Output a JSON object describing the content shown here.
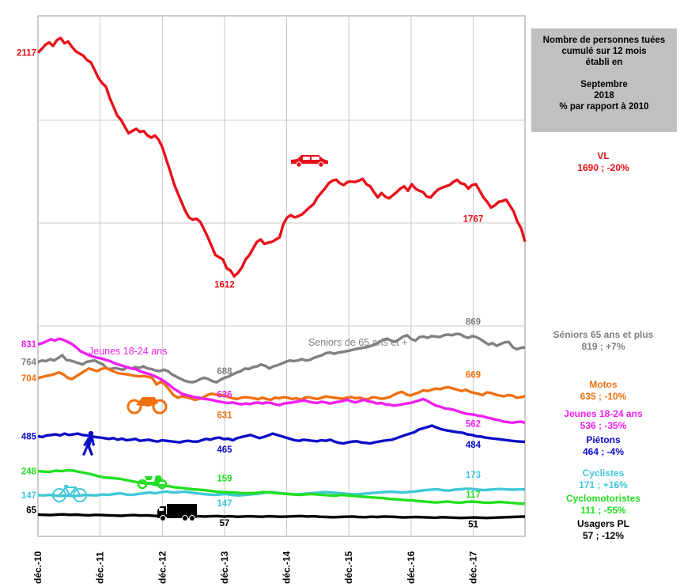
{
  "info_box": {
    "line1": "Nombre de personnes tuées",
    "line2": "cumulé sur 12 mois",
    "line3": "établi en",
    "line4": "Septembre",
    "line5": "2018",
    "line6": "% par rapport à 2010"
  },
  "colors": {
    "vl": "#e8101a",
    "seniors": "#808080",
    "motos": "#f07010",
    "jeunes": "#f020f0",
    "pietons": "#0c0cc8",
    "cyclistes": "#40c8d8",
    "cyclomotoristes": "#22e022",
    "pl": "#000000"
  },
  "chart_data": {
    "type": "line",
    "x_ticks": [
      "déc.-10",
      "déc.-11",
      "déc.-12",
      "déc.-13",
      "déc.-14",
      "déc.-15",
      "déc.-16",
      "déc.-17"
    ],
    "series": [
      {
        "key": "vl",
        "name": "VL",
        "legend": "1690 ; -20%",
        "labels": [
          {
            "text": "2117",
            "month": 0,
            "value": 2117
          },
          {
            "text": "1612",
            "month": 36,
            "value": 1612
          },
          {
            "text": "1767",
            "month": 84,
            "value": 1767
          }
        ],
        "values": [
          2117,
          2125,
          2135,
          2140,
          2132,
          2145,
          2150,
          2138,
          2142,
          2130,
          2120,
          2115,
          2110,
          2100,
          2095,
          2078,
          2060,
          2048,
          2040,
          2015,
          1995,
          1975,
          1965,
          1950,
          1935,
          1940,
          1945,
          1938,
          1940,
          1930,
          1925,
          1930,
          1920,
          1902,
          1875,
          1850,
          1822,
          1800,
          1780,
          1760,
          1745,
          1740,
          1742,
          1735,
          1718,
          1700,
          1680,
          1660,
          1655,
          1650,
          1630,
          1625,
          1612,
          1620,
          1632,
          1650,
          1660,
          1675,
          1690,
          1695,
          1685,
          1688,
          1690,
          1695,
          1700,
          1730,
          1745,
          1750,
          1745,
          1748,
          1752,
          1760,
          1768,
          1775,
          1790,
          1800,
          1810,
          1822,
          1828,
          1830,
          1822,
          1818,
          1825,
          1826,
          1825,
          1828,
          1832,
          1820,
          1815,
          1802,
          1790,
          1800,
          1792,
          1788,
          1795,
          1802,
          1810,
          1815,
          1805,
          1820,
          1810,
          1805,
          1802,
          1792,
          1790,
          1800,
          1808,
          1812,
          1815,
          1818,
          1825,
          1830,
          1822,
          1820,
          1810,
          1818,
          1820,
          1805,
          1790,
          1780,
          1767,
          1772,
          1780,
          1782,
          1785,
          1772,
          1758,
          1735,
          1720,
          1690
        ]
      },
      {
        "key": "seniors",
        "name": "Séniors 65 ans et plus",
        "legend": "819 ; +7%",
        "inline_label": "Seniors de 65 ans et +",
        "labels": [
          {
            "text": "764",
            "month": 0,
            "value": 764
          },
          {
            "text": "688",
            "month": 36,
            "value": 688
          },
          {
            "text": "869",
            "month": 84,
            "value": 869
          }
        ],
        "values": [
          764,
          770,
          768,
          775,
          770,
          780,
          790,
          772,
          770,
          765,
          760,
          755,
          765,
          768,
          770,
          762,
          755,
          740,
          738,
          742,
          738,
          735,
          745,
          740,
          745,
          742,
          748,
          740,
          738,
          732,
          730,
          735,
          730,
          718,
          710,
          702,
          695,
          690,
          688,
          692,
          700,
          705,
          700,
          692,
          688,
          698,
          705,
          710,
          718,
          725,
          730,
          740,
          738,
          745,
          748,
          755,
          750,
          740,
          748,
          752,
          758,
          765,
          770,
          768,
          770,
          775,
          770,
          772,
          780,
          785,
          790,
          798,
          800,
          795,
          800,
          802,
          805,
          808,
          812,
          815,
          818,
          820,
          825,
          830,
          838,
          848,
          852,
          845,
          840,
          850,
          860,
          865,
          850,
          845,
          858,
          860,
          855,
          862,
          860,
          858,
          865,
          868,
          865,
          870,
          869,
          860,
          855,
          862,
          858,
          850,
          840,
          830,
          835,
          825,
          832,
          838,
          840,
          820,
          812,
          818,
          819
        ]
      },
      {
        "key": "motos",
        "name": "Motos",
        "legend": "635 ; -10%",
        "labels": [
          {
            "text": "704",
            "month": 0,
            "value": 704
          },
          {
            "text": "631",
            "month": 36,
            "value": 631
          },
          {
            "text": "669",
            "month": 84,
            "value": 669
          }
        ],
        "values": [
          704,
          708,
          712,
          715,
          720,
          725,
          718,
          705,
          700,
          710,
          720,
          730,
          740,
          735,
          730,
          738,
          742,
          735,
          728,
          722,
          720,
          718,
          715,
          712,
          710,
          712,
          708,
          705,
          680,
          690,
          680,
          660,
          640,
          630,
          635,
          632,
          628,
          622,
          625,
          631,
          640,
          645,
          642,
          638,
          640,
          632,
          628,
          625,
          630,
          632,
          630,
          628,
          624,
          630,
          625,
          622,
          630,
          628,
          632,
          630,
          625,
          628,
          622,
          630,
          632,
          628,
          625,
          630,
          635,
          632,
          630,
          628,
          626,
          630,
          632,
          628,
          630,
          625,
          624,
          632,
          630,
          626,
          628,
          632,
          640,
          648,
          652,
          642,
          638,
          645,
          650,
          658,
          655,
          660,
          665,
          662,
          668,
          669,
          665,
          660,
          655,
          660,
          652,
          648,
          645,
          640,
          650,
          648,
          642,
          638,
          635,
          640,
          638,
          630,
          632,
          635
        ]
      },
      {
        "key": "jeunes",
        "name": "Jeunes 18-24 ans",
        "legend": "536 ; -35%",
        "inline_label": "Jeunes 18-24 ans",
        "labels": [
          {
            "text": "831",
            "month": 0,
            "value": 831
          },
          {
            "text": "636",
            "month": 36,
            "value": 636
          },
          {
            "text": "562",
            "month": 84,
            "value": 562
          }
        ],
        "values": [
          831,
          835,
          842,
          850,
          845,
          852,
          848,
          840,
          832,
          820,
          805,
          798,
          790,
          785,
          780,
          778,
          772,
          768,
          760,
          755,
          750,
          745,
          740,
          738,
          730,
          725,
          720,
          715,
          708,
          700,
          690,
          678,
          665,
          655,
          645,
          640,
          636,
          632,
          630,
          626,
          624,
          622,
          618,
          615,
          612,
          610,
          612,
          608,
          605,
          608,
          606,
          610,
          612,
          608,
          612,
          610,
          605,
          602,
          608,
          610,
          612,
          615,
          618,
          620,
          615,
          612,
          610,
          615,
          612,
          608,
          612,
          615,
          618,
          622,
          616,
          612,
          618,
          622,
          616,
          614,
          608,
          610,
          605,
          604,
          600,
          602,
          605,
          608,
          610,
          615,
          620,
          625,
          618,
          608,
          600,
          596,
          590,
          588,
          585,
          580,
          575,
          570,
          568,
          566,
          562,
          560,
          555,
          552,
          548,
          545,
          540,
          538,
          536,
          538,
          540,
          536
        ]
      },
      {
        "key": "pietons",
        "name": "Piétons",
        "legend": "464 ; -4%",
        "labels": [
          {
            "text": "485",
            "month": 0,
            "value": 485
          },
          {
            "text": "465",
            "month": 36,
            "value": 465
          },
          {
            "text": "484",
            "month": 84,
            "value": 484
          }
        ],
        "values": [
          485,
          482,
          488,
          490,
          492,
          488,
          495,
          490,
          492,
          495,
          490,
          488,
          485,
          482,
          480,
          478,
          475,
          478,
          472,
          476,
          470,
          472,
          475,
          468,
          470,
          472,
          468,
          465,
          470,
          468,
          466,
          464,
          462,
          466,
          468,
          465,
          465,
          470,
          475,
          472,
          478,
          480,
          474,
          476,
          470,
          478,
          482,
          486,
          490,
          484,
          478,
          482,
          488,
          495,
          490,
          485,
          480,
          475,
          470,
          468,
          472,
          470,
          468,
          466,
          470,
          468,
          472,
          465,
          460,
          458,
          462,
          465,
          466,
          462,
          460,
          458,
          462,
          465,
          468,
          470,
          472,
          478,
          484,
          490,
          495,
          500,
          510,
          515,
          520,
          525,
          518,
          512,
          508,
          505,
          502,
          500,
          498,
          492,
          490,
          485,
          484,
          480,
          478,
          476,
          474,
          472,
          470,
          468,
          466,
          465,
          464
        ]
      },
      {
        "key": "cyclistes",
        "name": "Cyclistes",
        "legend": "171 ; +16%",
        "labels": [
          {
            "text": "147",
            "month": 0,
            "value": 147
          },
          {
            "text": "147",
            "month": 36,
            "value": 147
          },
          {
            "text": "173",
            "month": 84,
            "value": 173
          }
        ],
        "values": [
          147,
          146,
          148,
          145,
          144,
          146,
          143,
          145,
          148,
          147,
          146,
          150,
          148,
          152,
          155,
          150,
          148,
          152,
          155,
          158,
          155,
          160,
          162,
          158,
          160,
          162,
          158,
          155,
          152,
          150,
          148,
          150,
          152,
          148,
          146,
          147,
          150,
          152,
          155,
          158,
          160,
          156,
          154,
          152,
          150,
          152,
          154,
          156,
          158,
          160,
          158,
          156,
          154,
          152,
          150,
          152,
          154,
          156,
          158,
          160,
          162,
          160,
          158,
          160,
          162,
          165,
          168,
          170,
          172,
          168,
          166,
          170,
          172,
          174,
          173,
          170,
          168,
          170,
          172,
          173,
          171,
          170,
          172,
          171
        ]
      },
      {
        "key": "cyclomotoristes",
        "name": "Cyclomotoristes",
        "legend": "111 ; -55%",
        "labels": [
          {
            "text": "248",
            "month": 0,
            "value": 248
          },
          {
            "text": "159",
            "month": 36,
            "value": 159
          },
          {
            "text": "117",
            "month": 84,
            "value": 117
          }
        ],
        "values": [
          248,
          246,
          245,
          250,
          248,
          252,
          250,
          245,
          240,
          235,
          228,
          222,
          220,
          218,
          215,
          210,
          205,
          200,
          198,
          195,
          190,
          188,
          185,
          180,
          178,
          175,
          172,
          170,
          168,
          165,
          162,
          160,
          159,
          158,
          156,
          155,
          155,
          157,
          160,
          158,
          156,
          154,
          152,
          150,
          148,
          150,
          152,
          150,
          148,
          146,
          145,
          148,
          146,
          144,
          142,
          140,
          138,
          136,
          135,
          132,
          130,
          128,
          126,
          125,
          122,
          120,
          118,
          116,
          118,
          120,
          117,
          115,
          118,
          120,
          118,
          116,
          115,
          117,
          118,
          116,
          114,
          112,
          111
        ]
      },
      {
        "key": "pl",
        "name": "Usagers PL",
        "legend": "57 ; -12%",
        "labels": [
          {
            "text": "65",
            "month": 0,
            "value": 65
          },
          {
            "text": "57",
            "month": 36,
            "value": 57
          },
          {
            "text": "51",
            "month": 84,
            "value": 51
          }
        ],
        "values": [
          65,
          64,
          63,
          65,
          66,
          64,
          65,
          63,
          62,
          64,
          63,
          62,
          61,
          60,
          62,
          63,
          61,
          62,
          60,
          59,
          61,
          60,
          58,
          59,
          60,
          58,
          57,
          58,
          59,
          57,
          58,
          56,
          57,
          58,
          57,
          56,
          58,
          57,
          56,
          57,
          58,
          59,
          57,
          58,
          56,
          55,
          54,
          55,
          56,
          57,
          55,
          54,
          56,
          55,
          57,
          56,
          55,
          53,
          54,
          55,
          54,
          53,
          52,
          54,
          53,
          52,
          51,
          52,
          53,
          52,
          51,
          52,
          53,
          54,
          55,
          56,
          57
        ]
      }
    ]
  }
}
